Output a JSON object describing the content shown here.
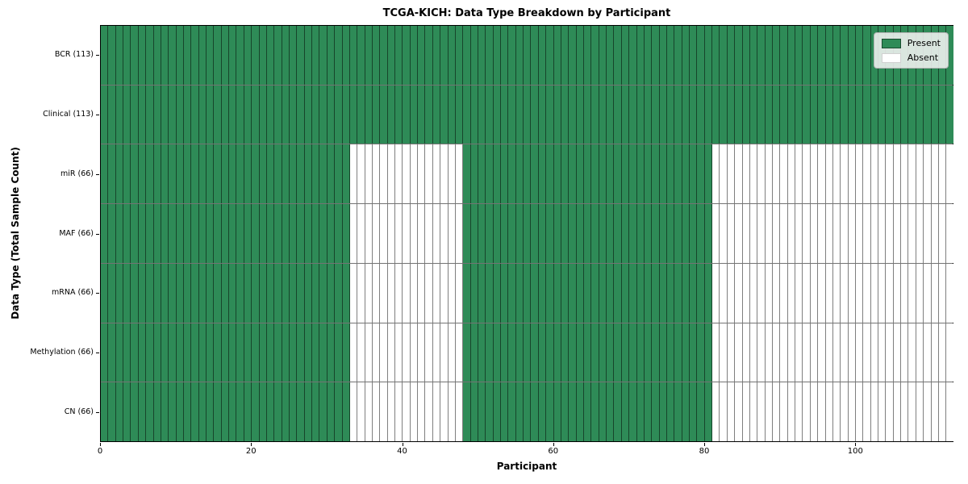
{
  "chart_data": {
    "type": "heatmap",
    "title": "TCGA-KICH: Data Type Breakdown by Participant",
    "xlabel": "Participant",
    "ylabel": "Data Type (Total Sample Count)",
    "n_participants": 113,
    "xlim": [
      0,
      113
    ],
    "x_ticks": [
      0,
      20,
      40,
      60,
      80,
      100
    ],
    "grid": "per-cell borders",
    "legend_position": "upper right",
    "rows": [
      {
        "label": "BCR (113)",
        "data_type": "BCR",
        "present_count": 113,
        "present_ranges": [
          [
            0,
            113
          ]
        ]
      },
      {
        "label": "Clinical (113)",
        "data_type": "Clinical",
        "present_count": 113,
        "present_ranges": [
          [
            0,
            113
          ]
        ]
      },
      {
        "label": "miR (66)",
        "data_type": "miR",
        "present_count": 66,
        "present_ranges": [
          [
            0,
            33
          ],
          [
            48,
            81
          ]
        ]
      },
      {
        "label": "MAF (66)",
        "data_type": "MAF",
        "present_count": 66,
        "present_ranges": [
          [
            0,
            33
          ],
          [
            48,
            81
          ]
        ]
      },
      {
        "label": "mRNA (66)",
        "data_type": "mRNA",
        "present_count": 66,
        "present_ranges": [
          [
            0,
            33
          ],
          [
            48,
            81
          ]
        ]
      },
      {
        "label": "Methylation (66)",
        "data_type": "Methylation",
        "present_count": 66,
        "present_ranges": [
          [
            0,
            33
          ],
          [
            48,
            81
          ]
        ]
      },
      {
        "label": "CN (66)",
        "data_type": "CN",
        "present_count": 66,
        "present_ranges": [
          [
            0,
            33
          ],
          [
            48,
            81
          ]
        ]
      }
    ],
    "legend": [
      {
        "label": "Present",
        "color": "#2e8b57"
      },
      {
        "label": "Absent",
        "color": "#ffffff"
      }
    ],
    "colors": {
      "present": "#2e8b57",
      "absent": "#ffffff",
      "cell_border": "rgba(0,0,0,0.5)",
      "spine": "#000000",
      "legend_background": "#f2f2f2"
    }
  }
}
